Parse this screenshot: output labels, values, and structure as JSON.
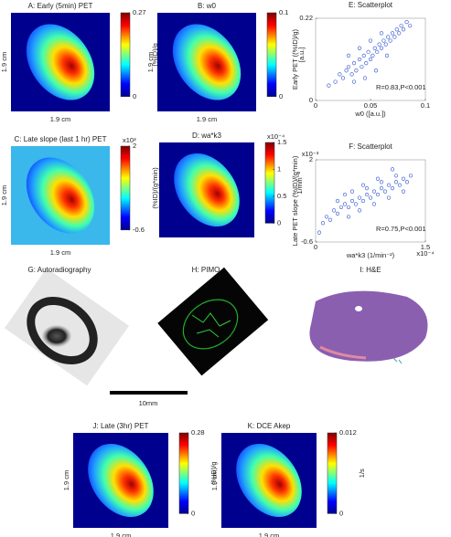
{
  "figure_panels": [
    {
      "title": "A: Early (5min) PET",
      "x_label": "1.9 cm",
      "y_label": "1.9 cm",
      "colorbar": {
        "label": "(%ID)/g",
        "lim": [
          0,
          0.27
        ],
        "ticks": [
          0,
          0.27
        ]
      }
    },
    {
      "title": "B: w0",
      "x_label": "1.9 cm",
      "y_label": "1.9 cm",
      "colorbar": {
        "label": "[a.u.]",
        "lim": [
          0,
          0.1
        ],
        "ticks": [
          0,
          0.1
        ]
      }
    },
    {
      "title": "C: Late slope (last 1 hr) PET",
      "x_label": "1.9 cm",
      "y_label": "1.9 cm",
      "colorbar": {
        "label": "(%ID)/(g*min)",
        "multiplier": "x10³",
        "lim": [
          -0.6,
          2
        ],
        "ticks": [
          -0.6,
          2
        ]
      }
    },
    {
      "title": "D: wa*k3",
      "colorbar": {
        "label": "1/min⁻²",
        "multiplier": "x10⁻⁴",
        "lim": [
          0,
          1.5
        ],
        "ticks": [
          0,
          0.5,
          1,
          1.5
        ]
      }
    },
    {
      "title": "J: Late (3hr) PET",
      "x_label": "1.9 cm",
      "y_label": "1.9 cm",
      "colorbar": {
        "label": "(%ID)/g",
        "lim": [
          0,
          0.28
        ],
        "ticks": [
          0,
          0.28
        ]
      }
    },
    {
      "title": "K: DCE Akep",
      "x_label": "1.9 cm",
      "y_label": "1.9 cm",
      "colorbar": {
        "label": "1/s",
        "lim": [
          0,
          0.012
        ],
        "ticks": [
          0,
          0.012
        ]
      }
    }
  ],
  "chart_data": [
    {
      "type": "scatter",
      "title": "E: Scatterplot",
      "x_label": "w0 ([a.u.])",
      "y_label": "Early PET ((%ID)/g)",
      "annotation": "R=0.83,P<0.001",
      "color": "#2a4fd0",
      "xlim": [
        0,
        0.1
      ],
      "xticks": [
        0,
        0.05,
        0.1
      ],
      "ylim": [
        0,
        0.22
      ],
      "yticks": [
        0,
        0.22
      ],
      "x": [
        0.012,
        0.018,
        0.022,
        0.025,
        0.028,
        0.03,
        0.033,
        0.035,
        0.037,
        0.04,
        0.042,
        0.044,
        0.046,
        0.048,
        0.05,
        0.052,
        0.054,
        0.056,
        0.058,
        0.06,
        0.062,
        0.064,
        0.066,
        0.068,
        0.07,
        0.072,
        0.074,
        0.076,
        0.078,
        0.08,
        0.083,
        0.086,
        0.03,
        0.04,
        0.05,
        0.06,
        0.045,
        0.055,
        0.065,
        0.035
      ],
      "values": [
        0.04,
        0.05,
        0.07,
        0.06,
        0.08,
        0.09,
        0.07,
        0.1,
        0.08,
        0.11,
        0.09,
        0.12,
        0.1,
        0.13,
        0.11,
        0.12,
        0.14,
        0.13,
        0.15,
        0.14,
        0.16,
        0.15,
        0.17,
        0.16,
        0.18,
        0.17,
        0.19,
        0.18,
        0.2,
        0.19,
        0.21,
        0.2,
        0.12,
        0.14,
        0.16,
        0.18,
        0.06,
        0.08,
        0.12,
        0.05
      ]
    },
    {
      "type": "scatter",
      "title": "F: Scatterplot",
      "x_label": "wa*k3 (1/min⁻²)",
      "y_label": "Late PET slope (%ID)/(g*min)",
      "annotation": "R=0.75,P<0.001",
      "color": "#2a4fd0",
      "x_multiplier": "x10⁻⁴",
      "y_multiplier": "x10⁻³",
      "xlim": [
        0,
        1.5
      ],
      "xticks": [
        0,
        1.5
      ],
      "ylim": [
        -0.6,
        2
      ],
      "yticks": [
        -0.6,
        2
      ],
      "x": [
        0.05,
        0.1,
        0.15,
        0.2,
        0.25,
        0.3,
        0.35,
        0.4,
        0.45,
        0.5,
        0.55,
        0.6,
        0.65,
        0.7,
        0.75,
        0.8,
        0.85,
        0.9,
        0.95,
        1.0,
        1.05,
        1.1,
        1.15,
        1.2,
        1.25,
        1.3,
        0.3,
        0.4,
        0.5,
        0.6,
        0.7,
        0.8,
        0.9,
        1.0,
        1.1,
        1.2,
        0.45,
        0.65,
        0.85,
        1.05
      ],
      "values": [
        -0.3,
        0,
        0.2,
        0.1,
        0.4,
        0.3,
        0.5,
        0.6,
        0.5,
        0.7,
        0.6,
        0.8,
        0.7,
        0.9,
        0.8,
        1.0,
        0.9,
        1.1,
        1.0,
        1.2,
        1.1,
        1.3,
        1.2,
        1.4,
        1.3,
        1.5,
        0.7,
        0.9,
        1.0,
        0.4,
        1.1,
        0.6,
        1.3,
        0.8,
        1.5,
        1.0,
        0.2,
        1.2,
        1.4,
        1.7
      ]
    }
  ],
  "photo_panels": [
    {
      "title": "G: Autoradiography"
    },
    {
      "title": "H: PIMO"
    },
    {
      "title": "I: H&E"
    }
  ],
  "scale_bar": {
    "label": "10mm"
  }
}
